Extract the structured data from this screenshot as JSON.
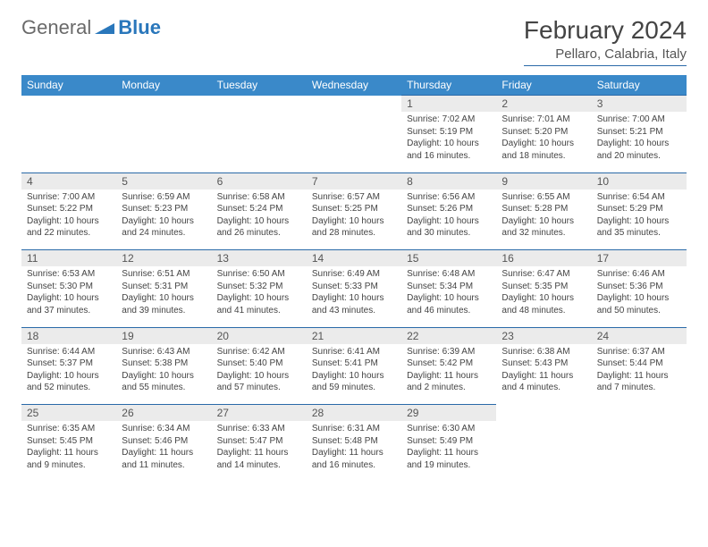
{
  "brand": {
    "part1": "General",
    "part2": "Blue"
  },
  "title": "February 2024",
  "location": "Pellaro, Calabria, Italy",
  "colors": {
    "header_bg": "#3a89c9",
    "header_text": "#ffffff",
    "daynum_bg": "#ebebeb",
    "border": "#2a6aa8",
    "text": "#444444",
    "brand_gray": "#6a6a6a",
    "brand_blue": "#2a77bb"
  },
  "day_headers": [
    "Sunday",
    "Monday",
    "Tuesday",
    "Wednesday",
    "Thursday",
    "Friday",
    "Saturday"
  ],
  "weeks": [
    [
      null,
      null,
      null,
      null,
      {
        "n": "1",
        "sr": "Sunrise: 7:02 AM",
        "ss": "Sunset: 5:19 PM",
        "d1": "Daylight: 10 hours",
        "d2": "and 16 minutes."
      },
      {
        "n": "2",
        "sr": "Sunrise: 7:01 AM",
        "ss": "Sunset: 5:20 PM",
        "d1": "Daylight: 10 hours",
        "d2": "and 18 minutes."
      },
      {
        "n": "3",
        "sr": "Sunrise: 7:00 AM",
        "ss": "Sunset: 5:21 PM",
        "d1": "Daylight: 10 hours",
        "d2": "and 20 minutes."
      }
    ],
    [
      {
        "n": "4",
        "sr": "Sunrise: 7:00 AM",
        "ss": "Sunset: 5:22 PM",
        "d1": "Daylight: 10 hours",
        "d2": "and 22 minutes."
      },
      {
        "n": "5",
        "sr": "Sunrise: 6:59 AM",
        "ss": "Sunset: 5:23 PM",
        "d1": "Daylight: 10 hours",
        "d2": "and 24 minutes."
      },
      {
        "n": "6",
        "sr": "Sunrise: 6:58 AM",
        "ss": "Sunset: 5:24 PM",
        "d1": "Daylight: 10 hours",
        "d2": "and 26 minutes."
      },
      {
        "n": "7",
        "sr": "Sunrise: 6:57 AM",
        "ss": "Sunset: 5:25 PM",
        "d1": "Daylight: 10 hours",
        "d2": "and 28 minutes."
      },
      {
        "n": "8",
        "sr": "Sunrise: 6:56 AM",
        "ss": "Sunset: 5:26 PM",
        "d1": "Daylight: 10 hours",
        "d2": "and 30 minutes."
      },
      {
        "n": "9",
        "sr": "Sunrise: 6:55 AM",
        "ss": "Sunset: 5:28 PM",
        "d1": "Daylight: 10 hours",
        "d2": "and 32 minutes."
      },
      {
        "n": "10",
        "sr": "Sunrise: 6:54 AM",
        "ss": "Sunset: 5:29 PM",
        "d1": "Daylight: 10 hours",
        "d2": "and 35 minutes."
      }
    ],
    [
      {
        "n": "11",
        "sr": "Sunrise: 6:53 AM",
        "ss": "Sunset: 5:30 PM",
        "d1": "Daylight: 10 hours",
        "d2": "and 37 minutes."
      },
      {
        "n": "12",
        "sr": "Sunrise: 6:51 AM",
        "ss": "Sunset: 5:31 PM",
        "d1": "Daylight: 10 hours",
        "d2": "and 39 minutes."
      },
      {
        "n": "13",
        "sr": "Sunrise: 6:50 AM",
        "ss": "Sunset: 5:32 PM",
        "d1": "Daylight: 10 hours",
        "d2": "and 41 minutes."
      },
      {
        "n": "14",
        "sr": "Sunrise: 6:49 AM",
        "ss": "Sunset: 5:33 PM",
        "d1": "Daylight: 10 hours",
        "d2": "and 43 minutes."
      },
      {
        "n": "15",
        "sr": "Sunrise: 6:48 AM",
        "ss": "Sunset: 5:34 PM",
        "d1": "Daylight: 10 hours",
        "d2": "and 46 minutes."
      },
      {
        "n": "16",
        "sr": "Sunrise: 6:47 AM",
        "ss": "Sunset: 5:35 PM",
        "d1": "Daylight: 10 hours",
        "d2": "and 48 minutes."
      },
      {
        "n": "17",
        "sr": "Sunrise: 6:46 AM",
        "ss": "Sunset: 5:36 PM",
        "d1": "Daylight: 10 hours",
        "d2": "and 50 minutes."
      }
    ],
    [
      {
        "n": "18",
        "sr": "Sunrise: 6:44 AM",
        "ss": "Sunset: 5:37 PM",
        "d1": "Daylight: 10 hours",
        "d2": "and 52 minutes."
      },
      {
        "n": "19",
        "sr": "Sunrise: 6:43 AM",
        "ss": "Sunset: 5:38 PM",
        "d1": "Daylight: 10 hours",
        "d2": "and 55 minutes."
      },
      {
        "n": "20",
        "sr": "Sunrise: 6:42 AM",
        "ss": "Sunset: 5:40 PM",
        "d1": "Daylight: 10 hours",
        "d2": "and 57 minutes."
      },
      {
        "n": "21",
        "sr": "Sunrise: 6:41 AM",
        "ss": "Sunset: 5:41 PM",
        "d1": "Daylight: 10 hours",
        "d2": "and 59 minutes."
      },
      {
        "n": "22",
        "sr": "Sunrise: 6:39 AM",
        "ss": "Sunset: 5:42 PM",
        "d1": "Daylight: 11 hours",
        "d2": "and 2 minutes."
      },
      {
        "n": "23",
        "sr": "Sunrise: 6:38 AM",
        "ss": "Sunset: 5:43 PM",
        "d1": "Daylight: 11 hours",
        "d2": "and 4 minutes."
      },
      {
        "n": "24",
        "sr": "Sunrise: 6:37 AM",
        "ss": "Sunset: 5:44 PM",
        "d1": "Daylight: 11 hours",
        "d2": "and 7 minutes."
      }
    ],
    [
      {
        "n": "25",
        "sr": "Sunrise: 6:35 AM",
        "ss": "Sunset: 5:45 PM",
        "d1": "Daylight: 11 hours",
        "d2": "and 9 minutes."
      },
      {
        "n": "26",
        "sr": "Sunrise: 6:34 AM",
        "ss": "Sunset: 5:46 PM",
        "d1": "Daylight: 11 hours",
        "d2": "and 11 minutes."
      },
      {
        "n": "27",
        "sr": "Sunrise: 6:33 AM",
        "ss": "Sunset: 5:47 PM",
        "d1": "Daylight: 11 hours",
        "d2": "and 14 minutes."
      },
      {
        "n": "28",
        "sr": "Sunrise: 6:31 AM",
        "ss": "Sunset: 5:48 PM",
        "d1": "Daylight: 11 hours",
        "d2": "and 16 minutes."
      },
      {
        "n": "29",
        "sr": "Sunrise: 6:30 AM",
        "ss": "Sunset: 5:49 PM",
        "d1": "Daylight: 11 hours",
        "d2": "and 19 minutes."
      },
      null,
      null
    ]
  ]
}
